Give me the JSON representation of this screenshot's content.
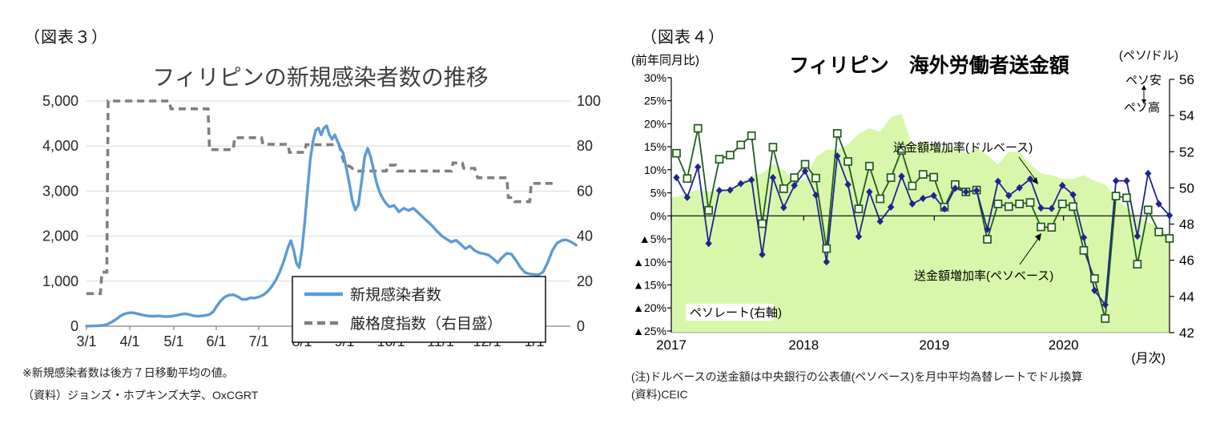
{
  "figure3": {
    "tag": "（図表３）",
    "title": "フィリピンの新規感染者数の推移",
    "note1": "※新規感染者数は後方７日移動平均の値。",
    "note2": "（資料）ジョンズ・ホプキンズ大学、OxCGRT",
    "left_axis_labels": [
      "5,000",
      "4,000",
      "3,000",
      "2,000",
      "1,000",
      "0"
    ],
    "right_axis_labels": [
      "100",
      "80",
      "60",
      "40",
      "20",
      "0"
    ],
    "x_labels": [
      "3/1",
      "4/1",
      "5/1",
      "6/1",
      "7/1",
      "8/1",
      "9/1",
      "10/1",
      "11/1",
      "12/1",
      "1/1"
    ],
    "legend": [
      {
        "label": "新規感染者数",
        "style": "solid",
        "color": "#5B9BD5"
      },
      {
        "label": "厳格度指数（右目盛）",
        "style": "dashed",
        "color": "#7f7f7f"
      }
    ],
    "chart_data": {
      "type": "line",
      "x_unit": "days_from_2020-03-01",
      "left_ylim": [
        0,
        5000
      ],
      "right_ylim": [
        0,
        100
      ],
      "grid": true,
      "series": [
        {
          "name": "新規感染者数",
          "axis": "left",
          "color": "#5B9BD5",
          "style": "solid",
          "points": [
            [
              0,
              3
            ],
            [
              4,
              5
            ],
            [
              8,
              10
            ],
            [
              12,
              20
            ],
            [
              15,
              45
            ],
            [
              18,
              90
            ],
            [
              21,
              150
            ],
            [
              24,
              220
            ],
            [
              27,
              270
            ],
            [
              30,
              295
            ],
            [
              33,
              300
            ],
            [
              36,
              280
            ],
            [
              39,
              255
            ],
            [
              42,
              235
            ],
            [
              45,
              225
            ],
            [
              48,
              222
            ],
            [
              51,
              230
            ],
            [
              54,
              215
            ],
            [
              57,
              215
            ],
            [
              60,
              225
            ],
            [
              63,
              240
            ],
            [
              66,
              262
            ],
            [
              69,
              278
            ],
            [
              72,
              262
            ],
            [
              75,
              235
            ],
            [
              78,
              225
            ],
            [
              81,
              228
            ],
            [
              84,
              240
            ],
            [
              87,
              260
            ],
            [
              90,
              330
            ],
            [
              92,
              430
            ],
            [
              95,
              560
            ],
            [
              98,
              650
            ],
            [
              101,
              690
            ],
            [
              104,
              700
            ],
            [
              107,
              660
            ],
            [
              110,
              600
            ],
            [
              113,
              595
            ],
            [
              116,
              630
            ],
            [
              119,
              625
            ],
            [
              122,
              650
            ],
            [
              125,
              690
            ],
            [
              128,
              760
            ],
            [
              131,
              870
            ],
            [
              134,
              1010
            ],
            [
              137,
              1200
            ],
            [
              140,
              1450
            ],
            [
              143,
              1750
            ],
            [
              145,
              1900
            ],
            [
              147,
              1700
            ],
            [
              149,
              1400
            ],
            [
              151,
              1300
            ],
            [
              153,
              1700
            ],
            [
              155,
              2300
            ],
            [
              157,
              3000
            ],
            [
              159,
              3700
            ],
            [
              161,
              4100
            ],
            [
              163,
              4350
            ],
            [
              165,
              4400
            ],
            [
              167,
              4250
            ],
            [
              169,
              4400
            ],
            [
              171,
              4450
            ],
            [
              173,
              4250
            ],
            [
              175,
              4150
            ],
            [
              177,
              4250
            ],
            [
              179,
              4100
            ],
            [
              181,
              3950
            ],
            [
              183,
              3850
            ],
            [
              185,
              3550
            ],
            [
              187,
              3200
            ],
            [
              189,
              2800
            ],
            [
              191,
              2580
            ],
            [
              193,
              2700
            ],
            [
              195,
              3200
            ],
            [
              197,
              3750
            ],
            [
              199,
              3950
            ],
            [
              201,
              3750
            ],
            [
              203,
              3450
            ],
            [
              205,
              3150
            ],
            [
              207,
              2950
            ],
            [
              209,
              2820
            ],
            [
              211,
              2720
            ],
            [
              213,
              2650
            ],
            [
              216,
              2680
            ],
            [
              219,
              2540
            ],
            [
              222,
              2620
            ],
            [
              225,
              2570
            ],
            [
              228,
              2620
            ],
            [
              231,
              2520
            ],
            [
              234,
              2420
            ],
            [
              237,
              2320
            ],
            [
              240,
              2220
            ],
            [
              243,
              2100
            ],
            [
              246,
              2000
            ],
            [
              249,
              1930
            ],
            [
              252,
              1870
            ],
            [
              255,
              1910
            ],
            [
              258,
              1820
            ],
            [
              261,
              1720
            ],
            [
              264,
              1780
            ],
            [
              267,
              1680
            ],
            [
              270,
              1630
            ],
            [
              273,
              1610
            ],
            [
              276,
              1580
            ],
            [
              279,
              1500
            ],
            [
              282,
              1410
            ],
            [
              285,
              1530
            ],
            [
              288,
              1620
            ],
            [
              291,
              1600
            ],
            [
              294,
              1460
            ],
            [
              297,
              1300
            ],
            [
              300,
              1190
            ],
            [
              303,
              1160
            ],
            [
              306,
              1150
            ],
            [
              309,
              1140
            ],
            [
              312,
              1210
            ],
            [
              315,
              1420
            ],
            [
              318,
              1680
            ],
            [
              321,
              1840
            ],
            [
              324,
              1900
            ],
            [
              327,
              1920
            ],
            [
              330,
              1880
            ],
            [
              333,
              1820
            ],
            [
              334,
              1800
            ]
          ]
        },
        {
          "name": "厳格度指数（右目盛）",
          "axis": "right",
          "color": "#7f7f7f",
          "style": "dashed",
          "points": [
            [
              0,
              14.5
            ],
            [
              10,
              14.5
            ],
            [
              11,
              24
            ],
            [
              14.5,
              24
            ],
            [
              15.5,
              100
            ],
            [
              58,
              100
            ],
            [
              59,
              96.5
            ],
            [
              86,
              96.5
            ],
            [
              87,
              78.4
            ],
            [
              104,
              78.4
            ],
            [
              105,
              83.7
            ],
            [
              124,
              83.7
            ],
            [
              125,
              80.8
            ],
            [
              143,
              80.8
            ],
            [
              144,
              77.2
            ],
            [
              155,
              77.2
            ],
            [
              156,
              80.6
            ],
            [
              180,
              80.6
            ],
            [
              184,
              72
            ],
            [
              188,
              70.7
            ],
            [
              191,
              68.9
            ],
            [
              211,
              68.9
            ],
            [
              212,
              71.5
            ],
            [
              217,
              71.5
            ],
            [
              218,
              68.9
            ],
            [
              252,
              68.9
            ],
            [
              253,
              72.5
            ],
            [
              259,
              72.5
            ],
            [
              260,
              70.1
            ],
            [
              267,
              70.1
            ],
            [
              269,
              65.9
            ],
            [
              288,
              65.9
            ],
            [
              289,
              57.1
            ],
            [
              292,
              57.1
            ],
            [
              293,
              55.3
            ],
            [
              303,
              55.3
            ],
            [
              304,
              63.4
            ],
            [
              320,
              63.4
            ]
          ]
        }
      ]
    }
  },
  "figure4": {
    "tag": "（図表４）",
    "title": "フィリピン　海外労働者送金額",
    "header_left": "(前年同月比)",
    "header_right": "(ペソ/ドル)",
    "peso_weak": "ペソ安",
    "peso_strong": "ペソ高",
    "annotation_dollar": "送金額増加率(ドルベース)",
    "annotation_peso": "送金額増加率(ペソベース)",
    "annotation_rate": "ペソレート(右軸)",
    "x_axis_unit": "(月次)",
    "note1": "(注)ドルベースの送金額は中央銀行の公表値(ペソベース)を月中平均為替レートでドル換算",
    "note2": "(資料)CEIC",
    "left_axis_labels": [
      "30%",
      "25%",
      "20%",
      "15%",
      "10%",
      "5%",
      "0%",
      "▲5%",
      "▲10%",
      "▲15%",
      "▲20%",
      "▲25%"
    ],
    "right_axis_labels": [
      "56",
      "54",
      "52",
      "50",
      "48",
      "46",
      "44",
      "42"
    ],
    "x_labels": [
      "2017",
      "2018",
      "2019",
      "2020"
    ],
    "chart_data": {
      "type": "line+area",
      "x": "monthly 2017-01 .. 2020-11",
      "left_ylim": [
        -25,
        30
      ],
      "right_ylim": [
        42,
        56
      ],
      "series": [
        {
          "name": "ペソレート(右軸)",
          "type": "area",
          "axis": "right",
          "color": "#d8f7ab",
          "values": [
            49.5,
            49.7,
            49.9,
            49.8,
            49.9,
            49.9,
            50.3,
            50.7,
            50.8,
            51.3,
            51.0,
            50.3,
            50.5,
            51.7,
            52.1,
            52.1,
            52.4,
            53.0,
            53.3,
            53.1,
            53.9,
            54.1,
            52.3,
            52.6,
            52.4,
            52.2,
            52.3,
            51.9,
            52.2,
            51.8,
            51.3,
            52.0,
            52.0,
            51.3,
            50.8,
            50.7,
            50.5,
            50.5,
            50.7,
            50.4,
            50.2,
            49.4,
            48.9,
            48.4,
            48.1,
            47.8,
            47.3
          ]
        },
        {
          "name": "送金額増加率(ドルベース)",
          "type": "line",
          "marker": "diamond",
          "axis": "left",
          "color": "#1f2490",
          "values": [
            8.3,
            4.0,
            10.6,
            -6.0,
            5.5,
            5.6,
            7.0,
            7.8,
            -8.4,
            8.3,
            1.8,
            6.6,
            9.7,
            4.5,
            -10.0,
            13.0,
            6.8,
            -4.5,
            5.2,
            -1.2,
            1.9,
            8.6,
            2.6,
            3.8,
            4.4,
            1.5,
            6.0,
            5.2,
            5.5,
            -2.9,
            7.5,
            4.4,
            6.1,
            8.0,
            1.7,
            1.6,
            6.6,
            4.6,
            -4.7,
            -16.2,
            -19.3,
            7.6,
            7.6,
            -4.4,
            9.2,
            2.6,
            0.1
          ]
        },
        {
          "name": "送金額増加率(ペソベース)",
          "type": "line",
          "marker": "square",
          "axis": "left",
          "color": "#1e5c1e",
          "values": [
            13.6,
            8.1,
            19.0,
            1.2,
            12.3,
            13.2,
            15.4,
            17.4,
            -1.7,
            14.9,
            5.9,
            8.3,
            11.2,
            8.2,
            -7.1,
            17.9,
            11.8,
            1.5,
            10.8,
            3.7,
            8.3,
            14.2,
            6.5,
            9.0,
            8.4,
            1.9,
            6.8,
            5.2,
            5.6,
            -5.1,
            2.6,
            2.0,
            2.6,
            2.9,
            -2.4,
            -2.5,
            2.6,
            2.0,
            -7.5,
            -13.6,
            -22.3,
            4.3,
            3.9,
            -10.5,
            1.3,
            -3.5,
            -4.9
          ]
        }
      ]
    }
  },
  "colors": {
    "blue_line": "#5B9BD5",
    "gray_dashed": "#7f7f7f",
    "navy_line": "#1f2490",
    "darkgreen_line": "#1e5c1e",
    "area_green": "#d8f7ab",
    "gridline": "#d9d9d9",
    "axis": "#808080"
  }
}
